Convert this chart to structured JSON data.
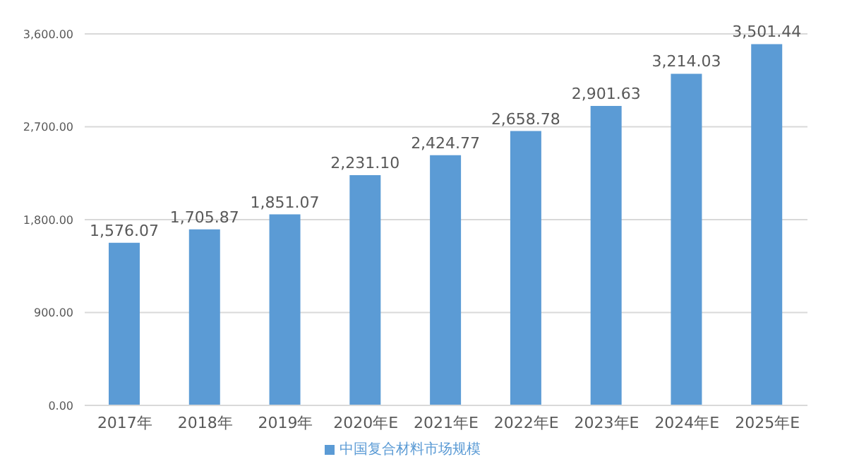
{
  "chart_data": {
    "type": "bar",
    "categories": [
      "2017年",
      "2018年",
      "2019年",
      "2020年E",
      "2021年E",
      "2022年E",
      "2023年E",
      "2024年E",
      "2025年E"
    ],
    "series": [
      {
        "name": "中国复合材料市场规模",
        "color": "#5b9bd5",
        "values": [
          1576.07,
          1705.87,
          1851.07,
          2231.1,
          2424.77,
          2658.78,
          2901.63,
          3214.03,
          3501.44
        ],
        "value_labels": [
          "1,576.07",
          "1,705.87",
          "1,851.07",
          "2,231.10",
          "2,424.77",
          "2,658.78",
          "2,901.63",
          "3,214.03",
          "3,501.44"
        ]
      }
    ],
    "ylim": [
      0,
      3600
    ],
    "yticks": [
      {
        "value": 0,
        "label": "0.00"
      },
      {
        "value": 900,
        "label": "900.00"
      },
      {
        "value": 1800,
        "label": "1,800.00"
      },
      {
        "value": 2700,
        "label": "2,700.00"
      },
      {
        "value": 3600,
        "label": "3,600.00"
      }
    ],
    "grid": "y",
    "legend": "bottom"
  }
}
